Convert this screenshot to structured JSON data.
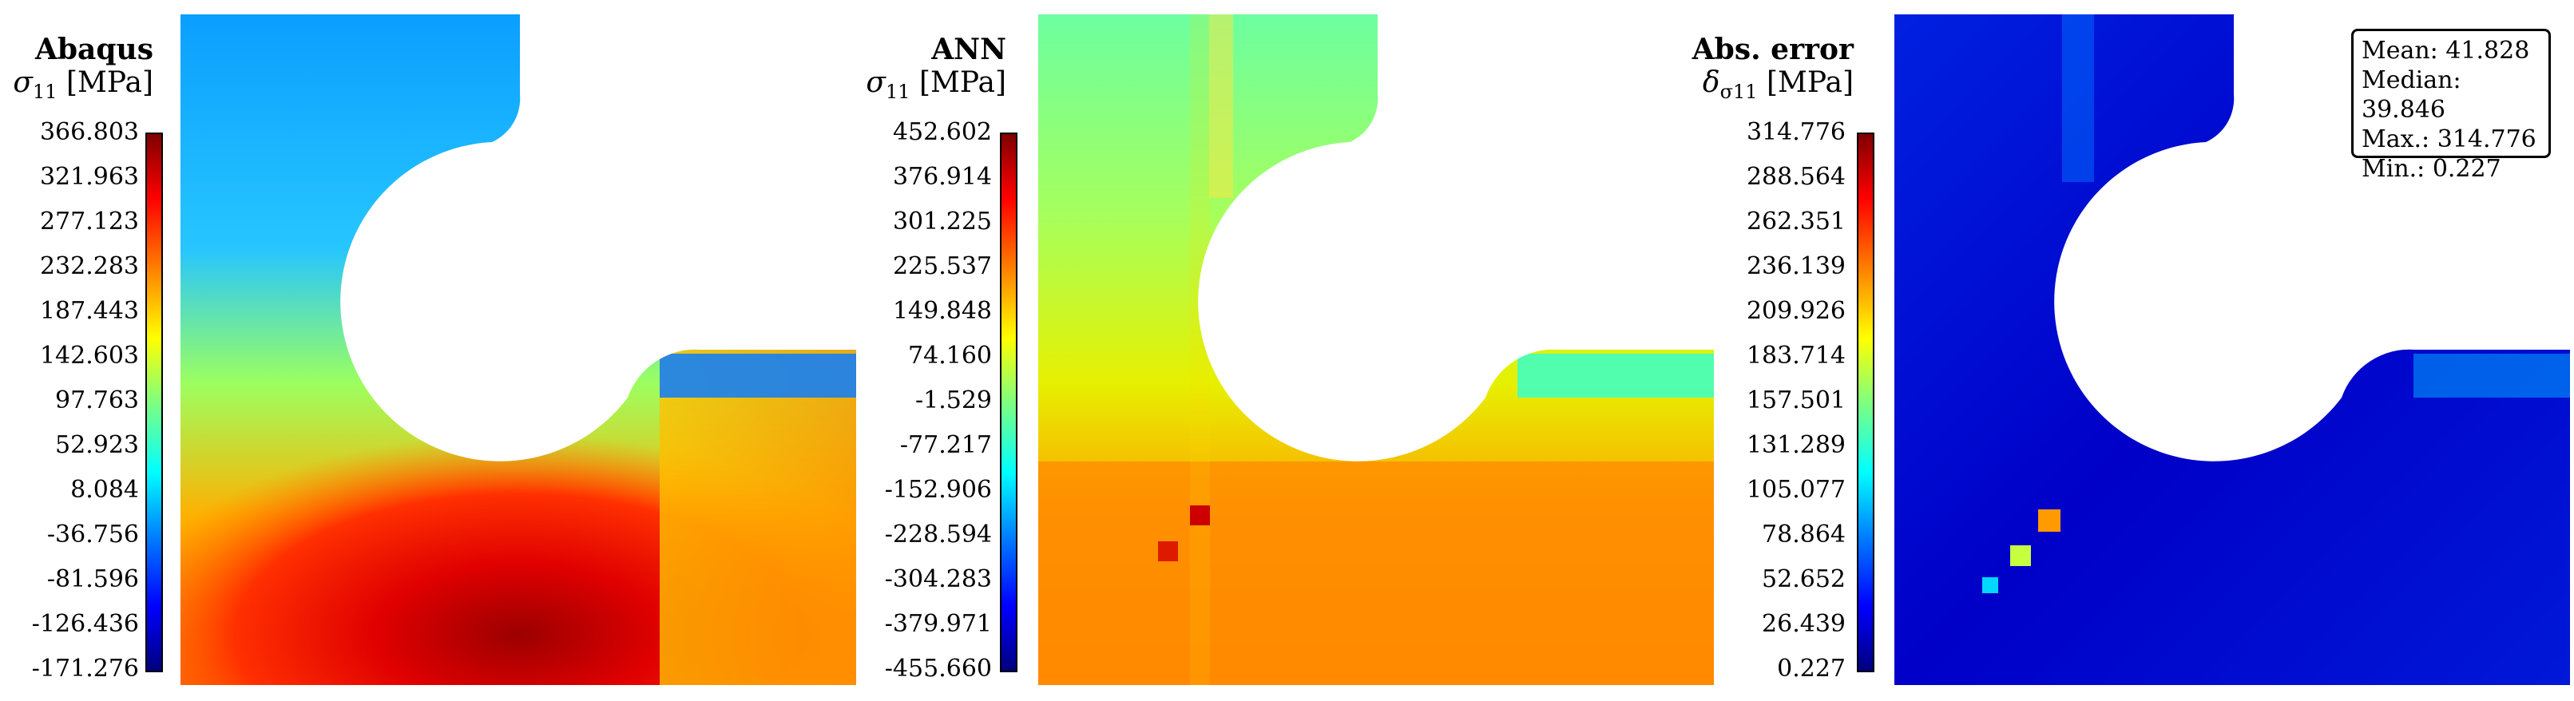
{
  "panels": [
    {
      "title": "Abaqus",
      "quantity_symbol": "σ",
      "quantity_sub": "11",
      "unit": "[MPa]",
      "colorbar_ticks": [
        "366.803",
        "321.963",
        "277.123",
        "232.283",
        "187.443",
        "142.603",
        "97.763",
        "52.923",
        "8.084",
        "-36.756",
        "-81.596",
        "-126.436",
        "-171.276"
      ],
      "range": [
        -171.276,
        366.803
      ]
    },
    {
      "title": "ANN",
      "quantity_symbol": "σ",
      "quantity_sub": "11",
      "unit": "[MPa]",
      "colorbar_ticks": [
        "452.602",
        "376.914",
        "301.225",
        "225.537",
        "149.848",
        "74.160",
        "-1.529",
        "-77.217",
        "-152.906",
        "-228.594",
        "-304.283",
        "-379.971",
        "-455.660"
      ],
      "range": [
        -455.66,
        452.602
      ]
    },
    {
      "title": "Abs. error",
      "quantity_symbol": "δ",
      "quantity_sub": "σ11",
      "unit": "[MPa]",
      "colorbar_ticks": [
        "314.776",
        "288.564",
        "262.351",
        "236.139",
        "209.926",
        "183.714",
        "157.501",
        "131.289",
        "105.077",
        "78.864",
        "52.652",
        "26.439",
        "0.227"
      ],
      "range": [
        0.227,
        314.776
      ]
    }
  ],
  "stats": {
    "mean": "Mean: 41.828",
    "median": "Median: 39.846",
    "max": "Max.: 314.776",
    "min": "Min.: 0.227"
  },
  "chart_data": {
    "type": "heatmap",
    "colormap": "jet",
    "panels": [
      {
        "title": "Abaqus",
        "label": "σ11 [MPa]",
        "vmin": -171.276,
        "vmax": 366.803
      },
      {
        "title": "ANN",
        "label": "σ11 [MPa]",
        "vmin": -455.66,
        "vmax": 452.602
      },
      {
        "title": "Abs. error",
        "label": "δσ11 [MPa]",
        "vmin": 0.227,
        "vmax": 314.776
      }
    ],
    "annotation": {
      "mean": 41.828,
      "median": 39.846,
      "max": 314.776,
      "min": 0.227
    },
    "legend": "top-right"
  }
}
